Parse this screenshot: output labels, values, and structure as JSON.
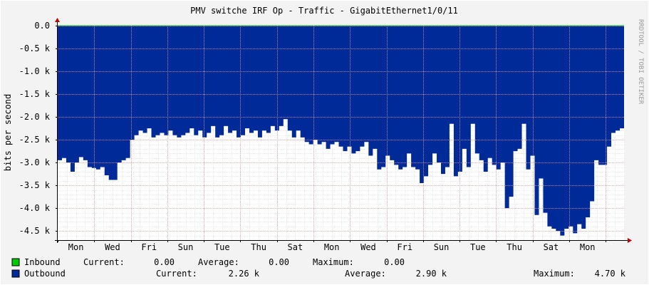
{
  "chart_data": {
    "type": "area",
    "title": "PMV switche IRF Op - Traffic - GigabitEthernet1/0/11",
    "ylabel": "bits per second",
    "watermark": "RRDTOOL / TOBI OETIKER",
    "ylim": [
      -4.7,
      0
    ],
    "y_unit": "k",
    "yticks": [
      {
        "value": 0,
        "label": "0.0"
      },
      {
        "value": -0.5,
        "label": "-0.5 k"
      },
      {
        "value": -1.0,
        "label": "-1.0 k"
      },
      {
        "value": -1.5,
        "label": "-1.5 k"
      },
      {
        "value": -2.0,
        "label": "-2.0 k"
      },
      {
        "value": -2.5,
        "label": "-2.5 k"
      },
      {
        "value": -3.0,
        "label": "-3.0 k"
      },
      {
        "value": -3.5,
        "label": "-3.5 k"
      },
      {
        "value": -4.0,
        "label": "-4.0 k"
      },
      {
        "value": -4.5,
        "label": "-4.5 k"
      }
    ],
    "xticks": [
      {
        "day": 0.5,
        "label": "Mon"
      },
      {
        "day": 1.5,
        "label": "Wed"
      },
      {
        "day": 2.5,
        "label": "Fri"
      },
      {
        "day": 3.5,
        "label": "Sun"
      },
      {
        "day": 4.5,
        "label": "Tue"
      },
      {
        "day": 5.5,
        "label": "Thu"
      },
      {
        "day": 6.5,
        "label": "Sat"
      },
      {
        "day": 7.5,
        "label": "Mon"
      },
      {
        "day": 8.5,
        "label": "Wed"
      },
      {
        "day": 9.5,
        "label": "Fri"
      },
      {
        "day": 10.5,
        "label": "Sun"
      },
      {
        "day": 11.5,
        "label": "Tue"
      },
      {
        "day": 12.5,
        "label": "Thu"
      },
      {
        "day": 13.5,
        "label": "Sat"
      },
      {
        "day": 14.5,
        "label": "Mon"
      }
    ],
    "x_days": 15.5,
    "colors": {
      "background": "#f3f3f3",
      "canvas": "#ffffff",
      "inbound": "#00cc00",
      "outbound": "#002a97",
      "grid_major": "#e0a0a0",
      "grid_minor": "#e8e8e8",
      "axis": "#c00000",
      "text": "#000000"
    },
    "series": [
      {
        "name": "Inbound",
        "color": "#00cc00",
        "values": [
          0,
          0,
          0
        ]
      },
      {
        "name": "Outbound",
        "color": "#002a97",
        "values": [
          -2.95,
          -2.9,
          -3.0,
          -3.2,
          -3.0,
          -2.88,
          -2.95,
          -3.1,
          -3.12,
          -3.15,
          -3.1,
          -3.28,
          -3.38,
          -3.38,
          -3.0,
          -2.95,
          -2.9,
          -2.5,
          -2.4,
          -2.3,
          -2.35,
          -2.25,
          -2.45,
          -2.4,
          -2.35,
          -2.4,
          -2.3,
          -2.4,
          -2.45,
          -2.4,
          -2.35,
          -2.25,
          -2.4,
          -2.3,
          -2.45,
          -2.35,
          -2.2,
          -2.45,
          -2.4,
          -2.2,
          -2.35,
          -2.3,
          -2.45,
          -2.4,
          -2.25,
          -2.35,
          -2.3,
          -2.45,
          -2.3,
          -2.35,
          -2.2,
          -2.3,
          -2.2,
          -2.05,
          -2.3,
          -2.45,
          -2.3,
          -2.45,
          -2.55,
          -2.6,
          -2.5,
          -2.6,
          -2.55,
          -2.7,
          -2.6,
          -2.55,
          -2.65,
          -2.75,
          -2.65,
          -2.8,
          -2.75,
          -2.65,
          -2.55,
          -2.85,
          -2.7,
          -3.15,
          -3.1,
          -2.85,
          -2.95,
          -3.05,
          -3.15,
          -3.1,
          -2.8,
          -3.1,
          -3.15,
          -3.45,
          -3.3,
          -3.05,
          -2.8,
          -3.0,
          -3.25,
          -3.1,
          -2.15,
          -3.3,
          -3.2,
          -2.7,
          -3.1,
          -2.15,
          -2.8,
          -2.95,
          -3.2,
          -2.9,
          -3.05,
          -3.15,
          -3.0,
          -4.0,
          -3.75,
          -2.75,
          -2.7,
          -2.15,
          -3.15,
          -2.85,
          -4.15,
          -3.35,
          -4.1,
          -4.4,
          -4.45,
          -4.5,
          -4.6,
          -4.45,
          -4.4,
          -4.55,
          -4.35,
          -4.45,
          -4.2,
          -3.85,
          -2.95,
          -3.05,
          -3.05,
          -2.65,
          -2.35,
          -2.3,
          -2.25
        ]
      }
    ]
  },
  "legend": [
    {
      "name": "Inbound",
      "color": "#00cc00",
      "current_label": "Current:",
      "current": "0.00",
      "average_label": "Average:",
      "average": "0.00",
      "maximum_label": "Maximum:",
      "maximum": "0.00"
    },
    {
      "name": "Outbound",
      "color": "#002a97",
      "current_label": "Current:",
      "current": "2.26 k",
      "average_label": "Average:",
      "average": "2.90 k",
      "maximum_label": "Maximum:",
      "maximum": "4.70 k"
    }
  ]
}
